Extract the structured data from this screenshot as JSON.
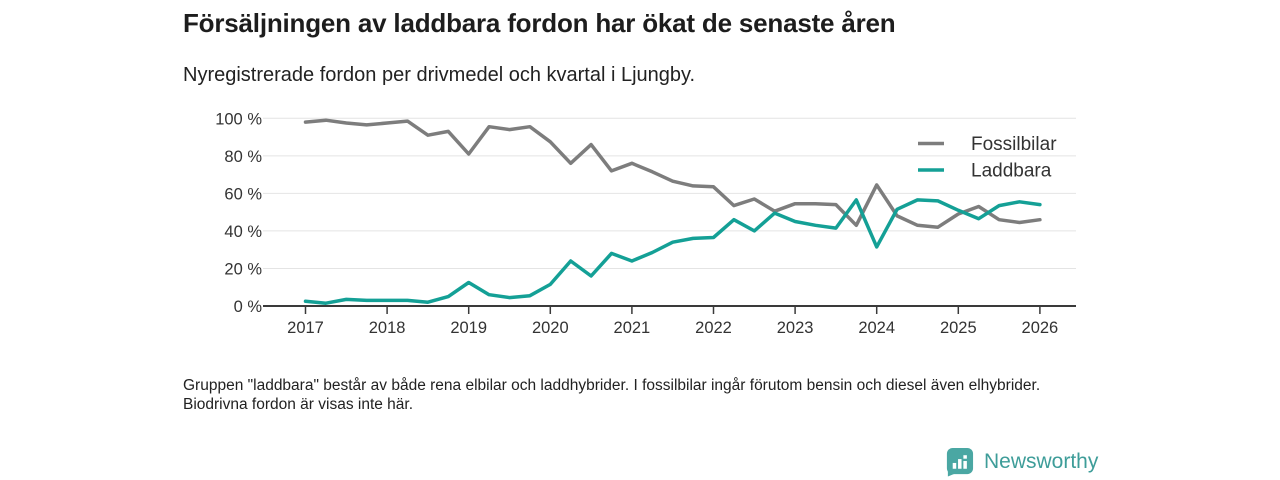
{
  "header": {
    "title": "Försäljningen av laddbara fordon har ökat de senaste åren",
    "subtitle": "Nyregistrerade fordon per drivmedel och kvartal i Ljungby."
  },
  "chart_data": {
    "type": "line",
    "x_unit": "quarter",
    "x_start": "2017 Q1",
    "x_end": "2026 Q1",
    "x_tick_labels": [
      "2017",
      "2018",
      "2019",
      "2020",
      "2021",
      "2022",
      "2023",
      "2024",
      "2025",
      "2026"
    ],
    "y_tick_labels": [
      "0 %",
      "20 %",
      "40 %",
      "60 %",
      "80 %",
      "100 %"
    ],
    "ylim": [
      0,
      100
    ],
    "grid": true,
    "legend_position": "top-right",
    "series": [
      {
        "name": "Fossilbilar",
        "color": "#7d7d7d",
        "values": [
          98,
          99,
          97.5,
          96.5,
          97.5,
          98.5,
          91,
          93,
          81,
          95.5,
          94,
          95.5,
          87.5,
          76,
          86,
          72,
          76,
          71.5,
          66.5,
          64,
          63.5,
          53.5,
          57,
          50.5,
          54.5,
          54.5,
          54,
          43,
          64.5,
          48,
          43,
          42,
          49,
          53,
          46,
          44.5,
          46
        ]
      },
      {
        "name": "Laddbara",
        "color": "#14a096",
        "values": [
          2.5,
          1.5,
          3.5,
          3,
          3,
          3,
          2,
          5,
          12.5,
          6,
          4.5,
          5.5,
          11.5,
          24,
          16,
          28,
          24,
          28.5,
          34,
          36,
          36.5,
          46,
          40,
          49.5,
          45,
          43,
          41.5,
          56.5,
          31.5,
          51.5,
          56.5,
          56,
          51,
          46.5,
          53.5,
          55.5,
          54
        ]
      }
    ]
  },
  "footer": {
    "note": "Gruppen \"laddbara\" består av både rena elbilar och laddhybrider. I fossilbilar ingår förutom bensin och diesel även elhybrider. Biodrivna fordon är visas inte här.",
    "brand": "Newsworthy"
  }
}
